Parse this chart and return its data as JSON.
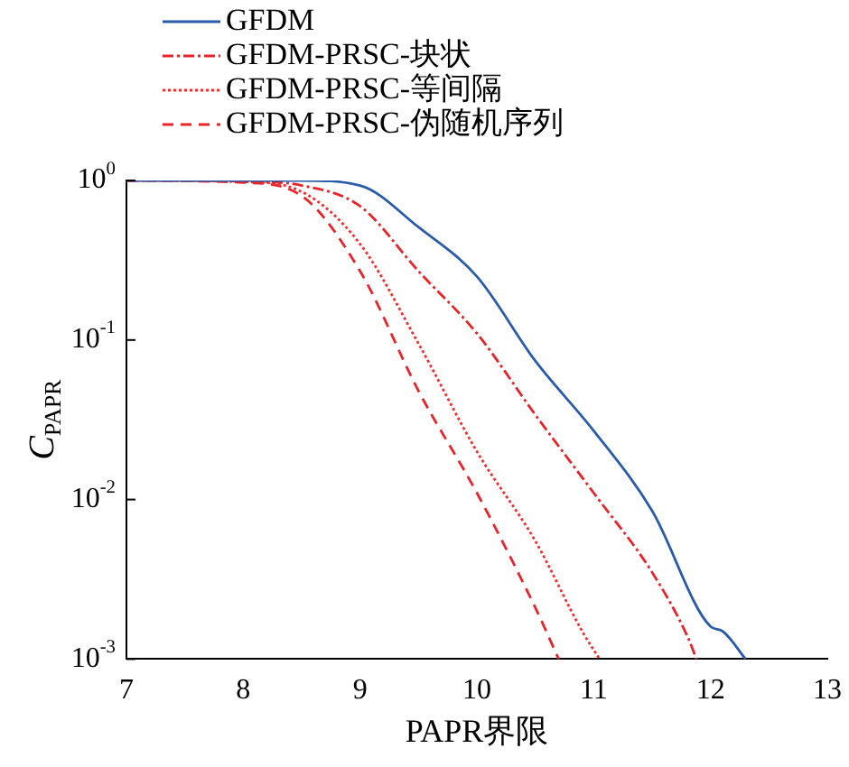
{
  "chart_data": {
    "type": "line",
    "xlabel": "PAPR界限",
    "ylabel": "C$_{PAPR}$",
    "log": "y",
    "grid": false,
    "legend": "top left",
    "marker": "none",
    "xlim": [
      7,
      13
    ],
    "xticks": [
      7,
      8,
      9,
      10,
      11,
      12,
      13
    ],
    "ylim": [
      0.001,
      1
    ],
    "yticks": [
      {
        "value": 1,
        "label": "10$^{0}$"
      },
      {
        "value": 0.1,
        "label": "10$^{-1}$"
      },
      {
        "value": 0.01,
        "label": "10$^{-2}$"
      },
      {
        "value": 0.001,
        "label": "10$^{-3}$"
      }
    ],
    "series": [
      {
        "name": "GFDM",
        "color": "#2a5caa",
        "line_style": "solid",
        "x": [
          7,
          8,
          8.5,
          9,
          9.5,
          10,
          10.5,
          11,
          11.5,
          12,
          12.1,
          12.3
        ],
        "values": [
          1,
          1,
          1,
          0.93,
          0.51,
          0.25,
          0.074,
          0.027,
          0.0085,
          0.0016,
          0.0015,
          0.001
        ]
      },
      {
        "name": "GFDM-PRSC-块状",
        "color": "#e8242b",
        "line_style": "dashdot",
        "x": [
          7,
          8,
          8.5,
          9,
          9.5,
          10,
          10.5,
          11,
          11.5,
          11.8,
          11.88
        ],
        "values": [
          1,
          0.99,
          0.93,
          0.69,
          0.27,
          0.11,
          0.034,
          0.011,
          0.0035,
          0.0014,
          0.001
        ]
      },
      {
        "name": "GFDM-PRSC-等间隔",
        "color": "#f03030",
        "line_style": "dotted",
        "x": [
          7,
          8,
          8.5,
          9,
          9.5,
          10,
          10.5,
          10.9,
          11.05
        ],
        "values": [
          1,
          0.98,
          0.85,
          0.4,
          0.095,
          0.02,
          0.0055,
          0.0015,
          0.001
        ]
      },
      {
        "name": "GFDM-PRSC-伪随机序列",
        "color": "#e8242b",
        "line_style": "dashed",
        "x": [
          7,
          8,
          8.5,
          9,
          9.5,
          10,
          10.5,
          10.7
        ],
        "values": [
          1,
          0.97,
          0.8,
          0.27,
          0.048,
          0.011,
          0.0021,
          0.001
        ]
      }
    ]
  }
}
